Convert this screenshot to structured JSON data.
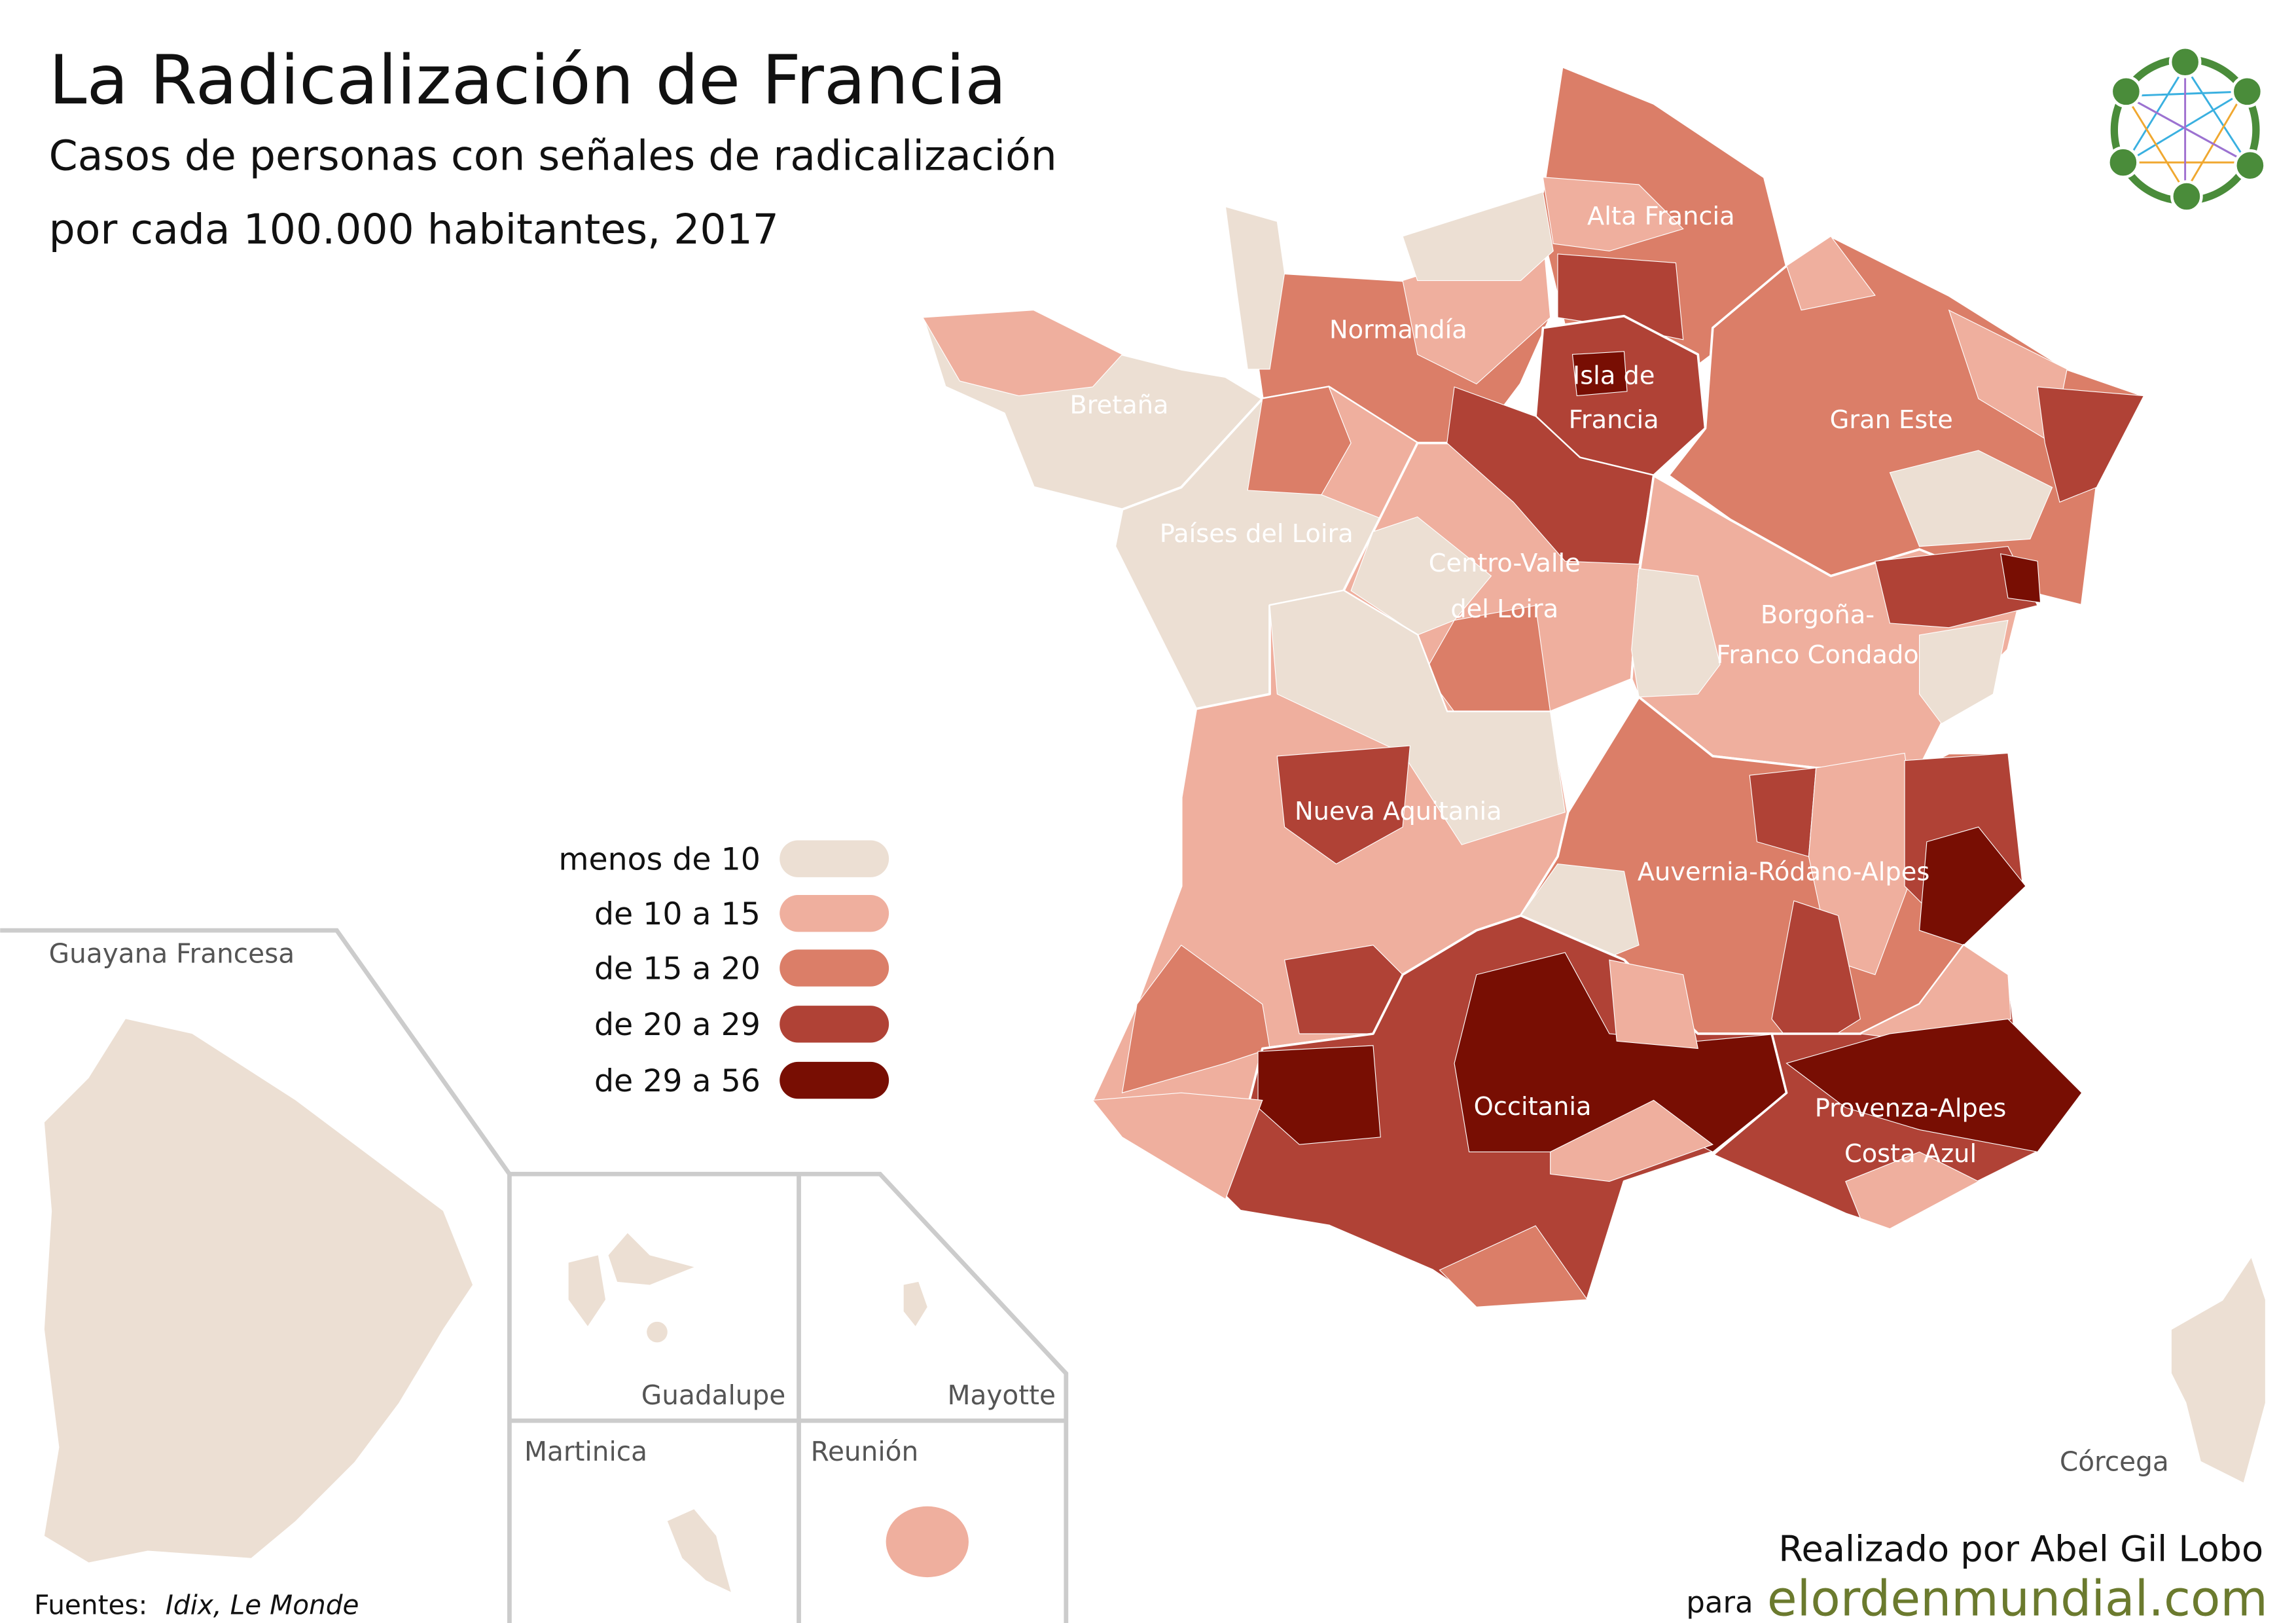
{
  "header": {
    "title": "La Radicalización de Francia",
    "subtitle_line1": "Casos de personas con señales de radicalización",
    "subtitle_line2": "por cada 100.000 habitantes, 2017"
  },
  "legend": {
    "items": [
      {
        "label": "menos de 10",
        "color": "#ecdfd3"
      },
      {
        "label": "de 10 a 15",
        "color": "#efaf9e"
      },
      {
        "label": "de 15 a 20",
        "color": "#db7e68"
      },
      {
        "label": "de 20 a 29",
        "color": "#b04236"
      },
      {
        "label": "de 29 a 56",
        "color": "#780e03"
      }
    ]
  },
  "regions": {
    "alta_francia": "Alta Francia",
    "normandia": "Normandía",
    "bretana": "Bretaña",
    "isla_de_francia_1": "Isla de",
    "isla_de_francia_2": "Francia",
    "gran_este": "Gran Este",
    "paises_del_loira": "Países del Loira",
    "centro_1": "Centro-Valle",
    "centro_2": "del Loira",
    "borgona_1": "Borgoña-",
    "borgona_2": "Franco Condado",
    "nueva_aquitania": "Nueva Aquitania",
    "auvernia": "Auvernia-Ródano-Alpes",
    "occitania": "Occitania",
    "provenza_1": "Provenza-Alpes",
    "provenza_2": "Costa Azul",
    "corcega": "Córcega"
  },
  "overseas": {
    "guayana": "Guayana Francesa",
    "guadalupe": "Guadalupe",
    "mayotte": "Mayotte",
    "martinica": "Martinica",
    "reunion": "Reunión"
  },
  "footer": {
    "sources_label": "Fuentes:",
    "sources": "Idix, Le Monde",
    "credit": "Realizado por Abel Gil Lobo",
    "para": "para",
    "site": "elordenmundial.com",
    "site_color": "#6b7a2e"
  }
}
